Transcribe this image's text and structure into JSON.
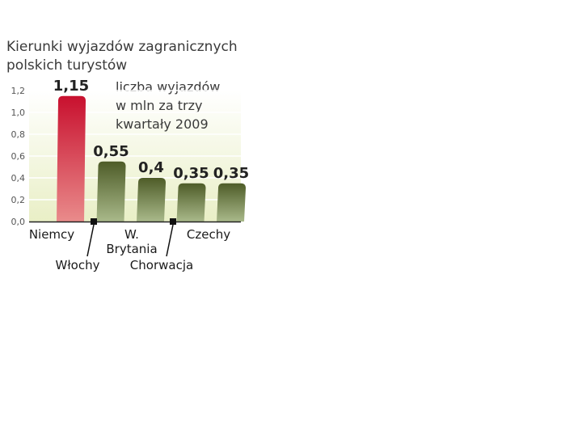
{
  "chart_data": {
    "type": "bar",
    "title": "Kierunki wyjazdów zagranicznych polskich turystów",
    "title_lines": [
      "Kierunki wyjazdów zagranicznych",
      "polskich turystów"
    ],
    "note_lines": [
      "liczba wyjazdów",
      "w mln za trzy",
      "kwartały 2009"
    ],
    "categories": [
      "Niemcy",
      "Włochy",
      "W. Brytania",
      "Chorwacja",
      "Czechy"
    ],
    "category_label_lines": [
      [
        "Niemcy"
      ],
      [
        "Włochy"
      ],
      [
        "W.",
        "Brytania"
      ],
      [
        "Chorwacja"
      ],
      [
        "Czechy"
      ]
    ],
    "values": [
      1.15,
      0.55,
      0.4,
      0.35,
      0.35
    ],
    "value_labels": [
      "1,15",
      "0,55",
      "0,4",
      "0,35",
      "0,35"
    ],
    "y_ticks": [
      "0,0",
      "0,2",
      "0,4",
      "0,6",
      "0,8",
      "1,0",
      "1,2"
    ],
    "y_tick_values": [
      0,
      0.2,
      0.4,
      0.6,
      0.8,
      1.0,
      1.2
    ],
    "ylim": [
      0,
      1.2
    ],
    "grid": true,
    "highlight_index": 0,
    "colors": {
      "highlight_top": "#c8102e",
      "highlight_bottom": "#e98b8b",
      "bar_top": "#4e5c28",
      "bar_bottom": "#a9b98a",
      "plot_bg_top": "#ffffff",
      "plot_bg_bottom": "#e9efc6"
    }
  }
}
